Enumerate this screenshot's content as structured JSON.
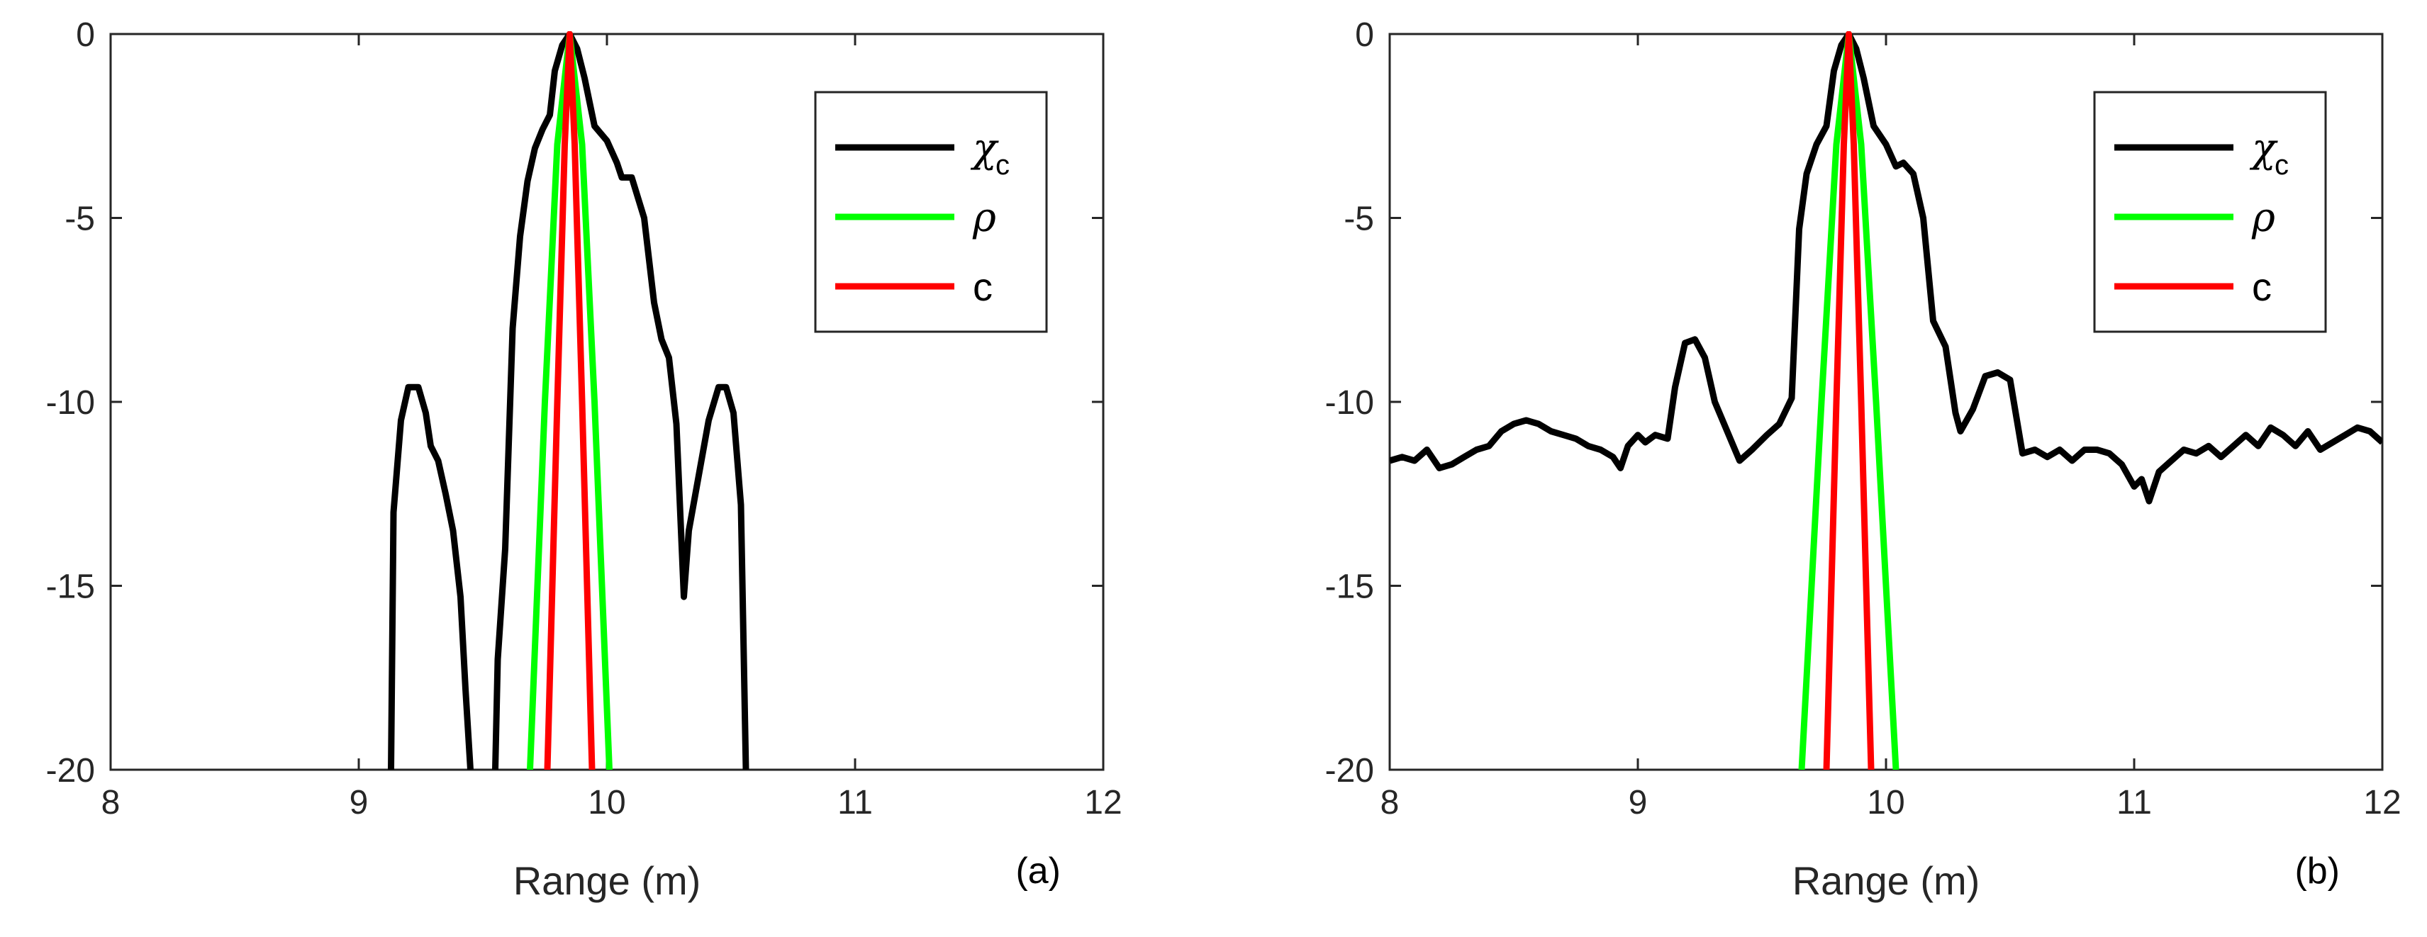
{
  "chart_data": [
    {
      "type": "line",
      "panel_label": "(a)",
      "xlabel": "Range (m)",
      "ylabel": "",
      "xlim": [
        8,
        12
      ],
      "ylim": [
        -20,
        0
      ],
      "xticks": [
        "8",
        "9",
        "10",
        "11",
        "12"
      ],
      "yticks": [
        "0",
        "-5",
        "-10",
        "-15",
        "-20"
      ],
      "grid": false,
      "legend_position": "top-right",
      "legend": [
        {
          "symbol": "χ",
          "sub": "c",
          "color": "#000000"
        },
        {
          "symbol": "ρ",
          "sub": "",
          "color": "#00ff00"
        },
        {
          "symbol": "c",
          "sub": "",
          "color": "#ff0000"
        }
      ],
      "series": [
        {
          "name": "χc",
          "color": "#000000",
          "points": [
            [
              9.13,
              -20
            ],
            [
              9.14,
              -13
            ],
            [
              9.17,
              -10.5
            ],
            [
              9.2,
              -9.6
            ],
            [
              9.24,
              -9.6
            ],
            [
              9.27,
              -10.3
            ],
            [
              9.29,
              -11.2
            ],
            [
              9.32,
              -11.6
            ],
            [
              9.35,
              -12.5
            ],
            [
              9.38,
              -13.5
            ],
            [
              9.41,
              -15.3
            ],
            [
              9.43,
              -17.8
            ],
            [
              9.45,
              -20
            ],
            [
              null,
              null
            ],
            [
              9.55,
              -20
            ],
            [
              9.56,
              -17
            ],
            [
              9.59,
              -14
            ],
            [
              9.62,
              -8
            ],
            [
              9.65,
              -5.5
            ],
            [
              9.68,
              -4
            ],
            [
              9.71,
              -3.1
            ],
            [
              9.74,
              -2.6
            ],
            [
              9.77,
              -2.2
            ],
            [
              9.79,
              -1
            ],
            [
              9.82,
              -0.3
            ],
            [
              9.85,
              0
            ],
            [
              9.88,
              -0.4
            ],
            [
              9.91,
              -1.2
            ],
            [
              9.95,
              -2.5
            ],
            [
              10.0,
              -2.9
            ],
            [
              10.04,
              -3.5
            ],
            [
              10.06,
              -3.9
            ],
            [
              10.1,
              -3.9
            ],
            [
              10.15,
              -5
            ],
            [
              10.19,
              -7.3
            ],
            [
              10.22,
              -8.3
            ],
            [
              10.25,
              -8.8
            ],
            [
              10.28,
              -10.6
            ],
            [
              10.31,
              -15.3
            ],
            [
              10.33,
              -13.5
            ],
            [
              10.37,
              -12
            ],
            [
              10.41,
              -10.5
            ],
            [
              10.45,
              -9.6
            ],
            [
              10.48,
              -9.6
            ],
            [
              10.51,
              -10.3
            ],
            [
              10.54,
              -12.8
            ],
            [
              10.56,
              -20
            ]
          ]
        },
        {
          "name": "ρ",
          "color": "#00ff00",
          "points": [
            [
              9.69,
              -20
            ],
            [
              9.75,
              -10
            ],
            [
              9.8,
              -3
            ],
            [
              9.85,
              0
            ],
            [
              9.9,
              -3
            ],
            [
              9.95,
              -10
            ],
            [
              10.01,
              -20
            ]
          ]
        },
        {
          "name": "c",
          "color": "#ff0000",
          "points": [
            [
              9.76,
              -20
            ],
            [
              9.8,
              -10
            ],
            [
              9.83,
              -3
            ],
            [
              9.85,
              0
            ],
            [
              9.87,
              -3
            ],
            [
              9.9,
              -10
            ],
            [
              9.94,
              -20
            ]
          ]
        }
      ]
    },
    {
      "type": "line",
      "panel_label": "(b)",
      "xlabel": "Range (m)",
      "ylabel": "",
      "xlim": [
        8,
        12
      ],
      "ylim": [
        -20,
        0
      ],
      "xticks": [
        "8",
        "9",
        "10",
        "11",
        "12"
      ],
      "yticks": [
        "0",
        "-5",
        "-10",
        "-15",
        "-20"
      ],
      "grid": false,
      "legend_position": "top-right",
      "legend": [
        {
          "symbol": "χ",
          "sub": "c",
          "color": "#000000"
        },
        {
          "symbol": "ρ",
          "sub": "",
          "color": "#00ff00"
        },
        {
          "symbol": "c",
          "sub": "",
          "color": "#ff0000"
        }
      ],
      "series": [
        {
          "name": "χc",
          "color": "#000000",
          "points": [
            [
              8.0,
              -11.6
            ],
            [
              8.05,
              -11.5
            ],
            [
              8.1,
              -11.6
            ],
            [
              8.15,
              -11.3
            ],
            [
              8.2,
              -11.8
            ],
            [
              8.25,
              -11.7
            ],
            [
              8.3,
              -11.5
            ],
            [
              8.35,
              -11.3
            ],
            [
              8.4,
              -11.2
            ],
            [
              8.45,
              -10.8
            ],
            [
              8.5,
              -10.6
            ],
            [
              8.55,
              -10.5
            ],
            [
              8.6,
              -10.6
            ],
            [
              8.65,
              -10.8
            ],
            [
              8.7,
              -10.9
            ],
            [
              8.75,
              -11
            ],
            [
              8.8,
              -11.2
            ],
            [
              8.85,
              -11.3
            ],
            [
              8.9,
              -11.5
            ],
            [
              8.93,
              -11.8
            ],
            [
              8.96,
              -11.2
            ],
            [
              9.0,
              -10.9
            ],
            [
              9.03,
              -11.1
            ],
            [
              9.07,
              -10.9
            ],
            [
              9.12,
              -11
            ],
            [
              9.15,
              -9.6
            ],
            [
              9.19,
              -8.4
            ],
            [
              9.23,
              -8.3
            ],
            [
              9.27,
              -8.8
            ],
            [
              9.31,
              -10
            ],
            [
              9.36,
              -10.8
            ],
            [
              9.41,
              -11.6
            ],
            [
              9.46,
              -11.3
            ],
            [
              9.52,
              -10.9
            ],
            [
              9.57,
              -10.6
            ],
            [
              9.62,
              -9.9
            ],
            [
              9.65,
              -5.3
            ],
            [
              9.68,
              -3.8
            ],
            [
              9.72,
              -3
            ],
            [
              9.76,
              -2.5
            ],
            [
              9.79,
              -1
            ],
            [
              9.82,
              -0.3
            ],
            [
              9.85,
              0
            ],
            [
              9.88,
              -0.4
            ],
            [
              9.91,
              -1.2
            ],
            [
              9.95,
              -2.5
            ],
            [
              10.0,
              -3
            ],
            [
              10.04,
              -3.6
            ],
            [
              10.07,
              -3.5
            ],
            [
              10.11,
              -3.8
            ],
            [
              10.15,
              -5
            ],
            [
              10.19,
              -7.8
            ],
            [
              10.24,
              -8.5
            ],
            [
              10.28,
              -10.3
            ],
            [
              10.3,
              -10.8
            ],
            [
              10.35,
              -10.2
            ],
            [
              10.4,
              -9.3
            ],
            [
              10.45,
              -9.2
            ],
            [
              10.5,
              -9.4
            ],
            [
              10.55,
              -11.4
            ],
            [
              10.6,
              -11.3
            ],
            [
              10.65,
              -11.5
            ],
            [
              10.7,
              -11.3
            ],
            [
              10.75,
              -11.6
            ],
            [
              10.8,
              -11.3
            ],
            [
              10.85,
              -11.3
            ],
            [
              10.9,
              -11.4
            ],
            [
              10.95,
              -11.7
            ],
            [
              11.0,
              -12.3
            ],
            [
              11.03,
              -12.1
            ],
            [
              11.06,
              -12.7
            ],
            [
              11.1,
              -11.9
            ],
            [
              11.15,
              -11.6
            ],
            [
              11.2,
              -11.3
            ],
            [
              11.25,
              -11.4
            ],
            [
              11.3,
              -11.2
            ],
            [
              11.35,
              -11.5
            ],
            [
              11.4,
              -11.2
            ],
            [
              11.45,
              -10.9
            ],
            [
              11.5,
              -11.2
            ],
            [
              11.55,
              -10.7
            ],
            [
              11.6,
              -10.9
            ],
            [
              11.65,
              -11.2
            ],
            [
              11.7,
              -10.8
            ],
            [
              11.75,
              -11.3
            ],
            [
              11.8,
              -11.1
            ],
            [
              11.85,
              -10.9
            ],
            [
              11.9,
              -10.7
            ],
            [
              11.95,
              -10.8
            ],
            [
              12.0,
              -11.1
            ]
          ]
        },
        {
          "name": "ρ",
          "color": "#00ff00",
          "points": [
            [
              9.66,
              -20
            ],
            [
              9.74,
              -10
            ],
            [
              9.8,
              -3
            ],
            [
              9.85,
              0
            ],
            [
              9.9,
              -3
            ],
            [
              9.96,
              -10
            ],
            [
              10.04,
              -20
            ]
          ]
        },
        {
          "name": "c",
          "color": "#ff0000",
          "points": [
            [
              9.76,
              -20
            ],
            [
              9.8,
              -10
            ],
            [
              9.83,
              -3
            ],
            [
              9.85,
              0
            ],
            [
              9.87,
              -3
            ],
            [
              9.9,
              -10
            ],
            [
              9.94,
              -20
            ]
          ]
        }
      ]
    }
  ]
}
